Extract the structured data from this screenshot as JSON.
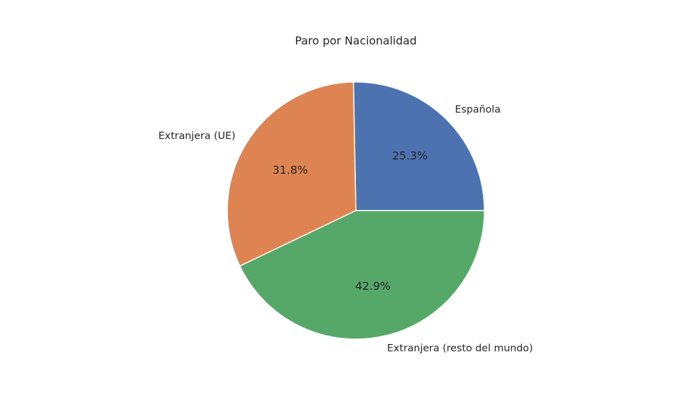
{
  "chart_data": {
    "type": "pie",
    "title": "Paro por Nacionalidad",
    "slices": [
      {
        "label": "Española",
        "value": 25.3,
        "pct_label": "25.3%",
        "color": "#4c72b0"
      },
      {
        "label": "Extranjera (UE)",
        "value": 31.8,
        "pct_label": "31.8%",
        "color": "#dd8452"
      },
      {
        "label": "Extranjera (resto del mundo)",
        "value": 42.9,
        "pct_label": "42.9%",
        "color": "#55a868"
      }
    ],
    "start_angle_deg": 0,
    "direction": "counterclockwise",
    "wedge_edge_color": "#ffffff",
    "legend": "none"
  }
}
